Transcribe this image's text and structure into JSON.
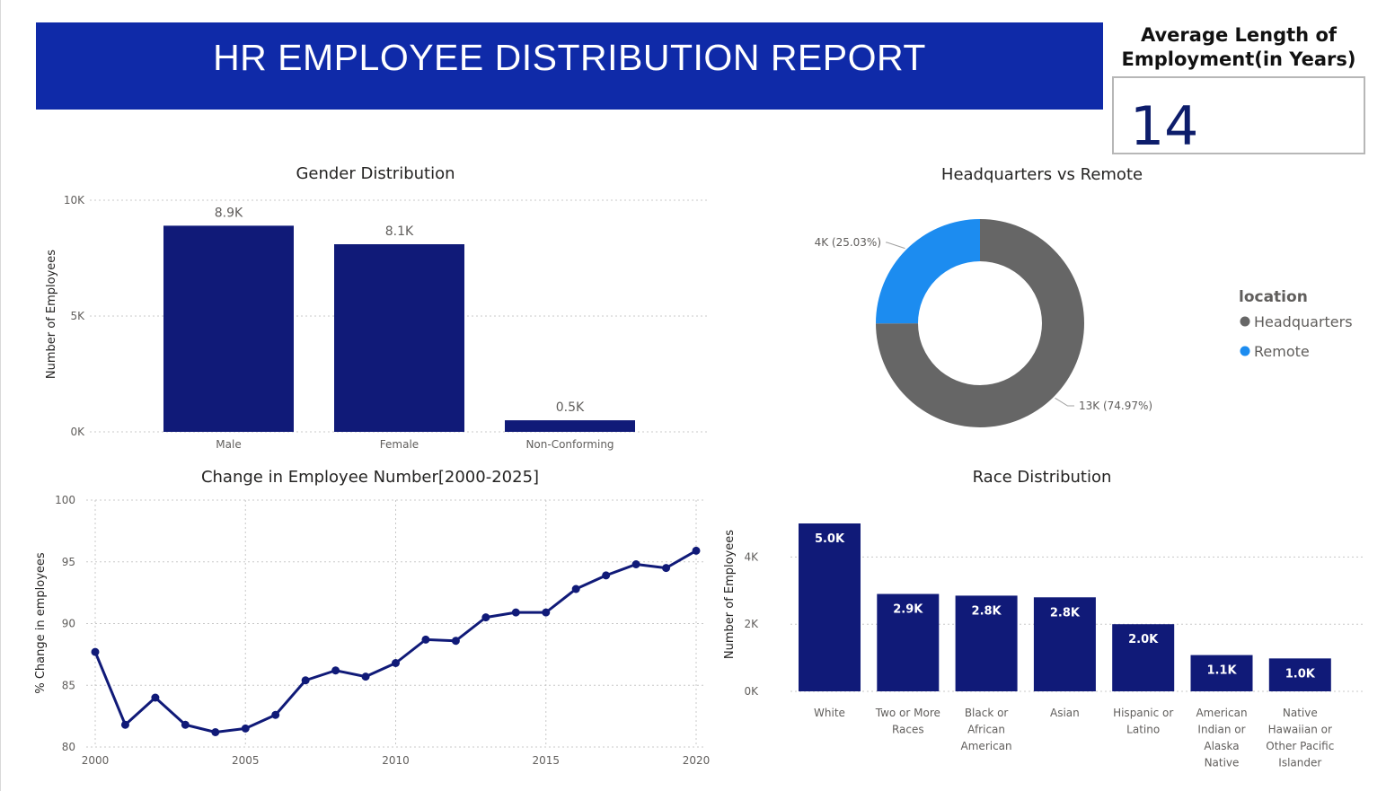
{
  "header": {
    "title": "HR EMPLOYEE DISTRIBUTION REPORT"
  },
  "kpi": {
    "title_line1": "Average Length of",
    "title_line2": "Employment(in Years)",
    "value": "14"
  },
  "colors": {
    "banner": "#0f2aa8",
    "bar": "#101a78",
    "headquarters": "#666666",
    "remote": "#1c8cf0"
  },
  "chart_data": [
    {
      "id": "gender",
      "type": "bar",
      "title": "Gender Distribution",
      "xlabel": "",
      "ylabel": "Number of Employees",
      "categories": [
        "Male",
        "Female",
        "Non-Conforming"
      ],
      "values": [
        8900,
        8100,
        500
      ],
      "data_labels": [
        "8.9K",
        "8.1K",
        "0.5K"
      ],
      "yticks": [
        0,
        5000,
        10000
      ],
      "ytick_labels": [
        "0K",
        "5K",
        "10K"
      ],
      "ylim": [
        0,
        10000
      ],
      "grid": true
    },
    {
      "id": "location",
      "type": "pie",
      "variant": "donut",
      "title": "Headquarters vs Remote",
      "legend_title": "location",
      "legend_position": "right",
      "slices": [
        {
          "name": "Headquarters",
          "value": 74.97,
          "label": "13K (74.97%)",
          "color": "#666666"
        },
        {
          "name": "Remote",
          "value": 25.03,
          "label": "4K (25.03%)",
          "color": "#1c8cf0"
        }
      ]
    },
    {
      "id": "trend",
      "type": "line",
      "title": "Change in Employee Number[2000-2025]",
      "xlabel": "",
      "ylabel": "% Change in employees",
      "x": [
        2000,
        2001,
        2002,
        2003,
        2004,
        2005,
        2006,
        2007,
        2008,
        2009,
        2010,
        2011,
        2012,
        2013,
        2014,
        2015,
        2016,
        2017,
        2018,
        2019,
        2020
      ],
      "values": [
        87.7,
        81.8,
        84.0,
        81.8,
        81.2,
        81.5,
        82.6,
        85.4,
        86.2,
        85.7,
        86.8,
        88.7,
        88.6,
        90.5,
        90.9,
        90.9,
        92.8,
        93.9,
        94.8,
        94.5,
        95.9
      ],
      "xticks": [
        2000,
        2005,
        2010,
        2015,
        2020
      ],
      "yticks": [
        80,
        85,
        90,
        95,
        100
      ],
      "ylim": [
        80,
        100
      ],
      "xlim": [
        2000,
        2020
      ],
      "grid": true
    },
    {
      "id": "race",
      "type": "bar",
      "title": "Race Distribution",
      "xlabel": "",
      "ylabel": "Number of Employees",
      "categories": [
        [
          "White"
        ],
        [
          "Two or More",
          "Races"
        ],
        [
          "Black or",
          "African",
          "American"
        ],
        [
          "Asian"
        ],
        [
          "Hispanic or",
          "Latino"
        ],
        [
          "American",
          "Indian or",
          "Alaska",
          "Native"
        ],
        [
          "Native",
          "Hawaiian or",
          "Other Pacific",
          "Islander"
        ]
      ],
      "values": [
        5000,
        2900,
        2850,
        2800,
        2000,
        1080,
        980
      ],
      "data_labels": [
        "5.0K",
        "2.9K",
        "2.8K",
        "2.8K",
        "2.0K",
        "1.1K",
        "1.0K"
      ],
      "yticks": [
        0,
        2000,
        4000
      ],
      "ytick_labels": [
        "0K",
        "2K",
        "4K"
      ],
      "ylim": [
        0,
        5000
      ],
      "grid": true
    }
  ]
}
